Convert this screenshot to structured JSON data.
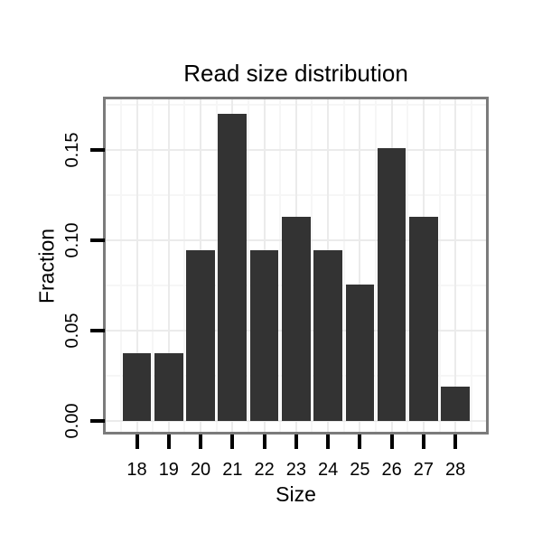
{
  "chart_data": {
    "type": "bar",
    "title": "Read size distribution",
    "xlabel": "Size",
    "ylabel": "Fraction",
    "categories": [
      18,
      19,
      20,
      21,
      22,
      23,
      24,
      25,
      26,
      27,
      28
    ],
    "values": [
      0.0377,
      0.0377,
      0.0943,
      0.1698,
      0.0943,
      0.1132,
      0.0943,
      0.0755,
      0.1509,
      0.1132,
      0.0189
    ],
    "yticks": [
      0.0,
      0.05,
      0.1,
      0.15
    ],
    "ytick_labels": [
      "0.00",
      "0.05",
      "0.10",
      "0.15"
    ],
    "yminor": [
      0.025,
      0.075,
      0.125,
      0.175
    ],
    "ylim": [
      -0.006,
      0.178
    ],
    "xlim": [
      17.02,
      28.96
    ],
    "bar_width": 0.9,
    "grid": "major+minor",
    "legend": "none",
    "colors": {
      "bar": "#333333",
      "panel_border": "#7b7b7b",
      "grid_major": "#ebebeb",
      "grid_minor": "#f6f6f6",
      "background": "#ffffff",
      "text": "#000000",
      "tick": "#000000"
    }
  }
}
